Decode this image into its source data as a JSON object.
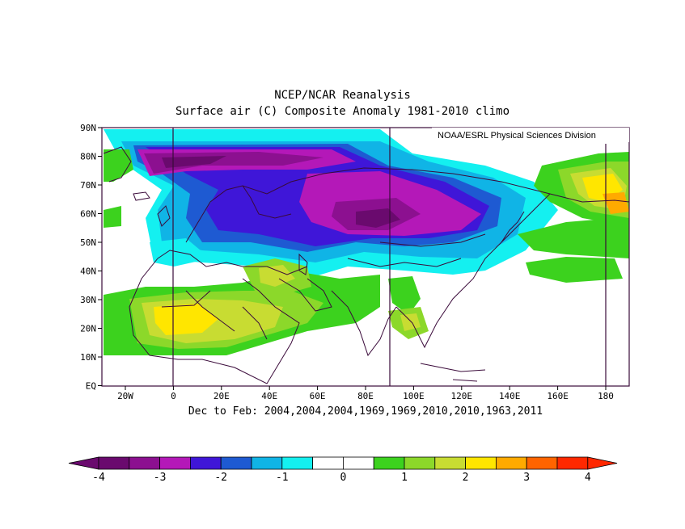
{
  "title_line1": "NCEP/NCAR Reanalysis",
  "title_line2": "Surface air (C) Composite Anomaly 1981-2010 climo",
  "credit": "NOAA/ESRL Physical Sciences Division",
  "caption": "Dec to Feb: 2004,2004,2004,1969,1969,2010,2010,1963,2011",
  "lat_labels": [
    "90N",
    "80N",
    "70N",
    "60N",
    "50N",
    "40N",
    "30N",
    "20N",
    "10N",
    "EQ"
  ],
  "lon_labels": [
    "20W",
    "0",
    "20E",
    "40E",
    "60E",
    "80E",
    "100E",
    "120E",
    "140E",
    "160E",
    "180"
  ],
  "colorbar": {
    "colors": [
      "#6a0a6e",
      "#8c1090",
      "#b418b8",
      "#3f16d8",
      "#1e5ad2",
      "#10b4e6",
      "#14f0f0",
      "#ffffff",
      "#ffffff",
      "#3cd21e",
      "#8cd82a",
      "#c8dc32",
      "#ffe600",
      "#ffaa00",
      "#ff6400",
      "#ff2800"
    ],
    "labels": [
      "-4",
      "-3",
      "-2",
      "-1",
      "0",
      "1",
      "2",
      "3",
      "4"
    ]
  }
}
